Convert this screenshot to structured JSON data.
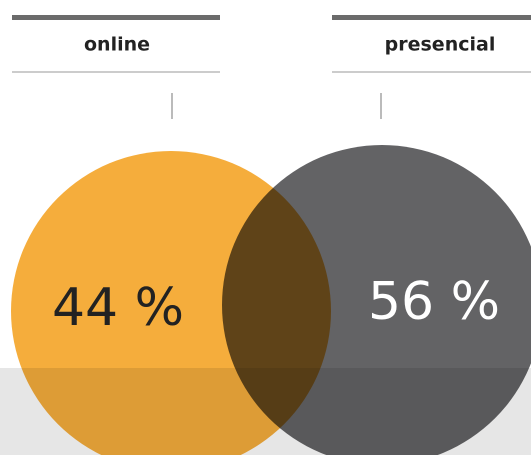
{
  "chart_data": {
    "type": "venn",
    "categories": [
      "online",
      "presencial"
    ],
    "values": [
      44,
      56
    ],
    "value_labels": [
      "44 %",
      "56 %"
    ],
    "colors": [
      "#f5ad3c",
      "#636365"
    ],
    "label_colors": [
      "#222222",
      "#ffffff"
    ]
  }
}
